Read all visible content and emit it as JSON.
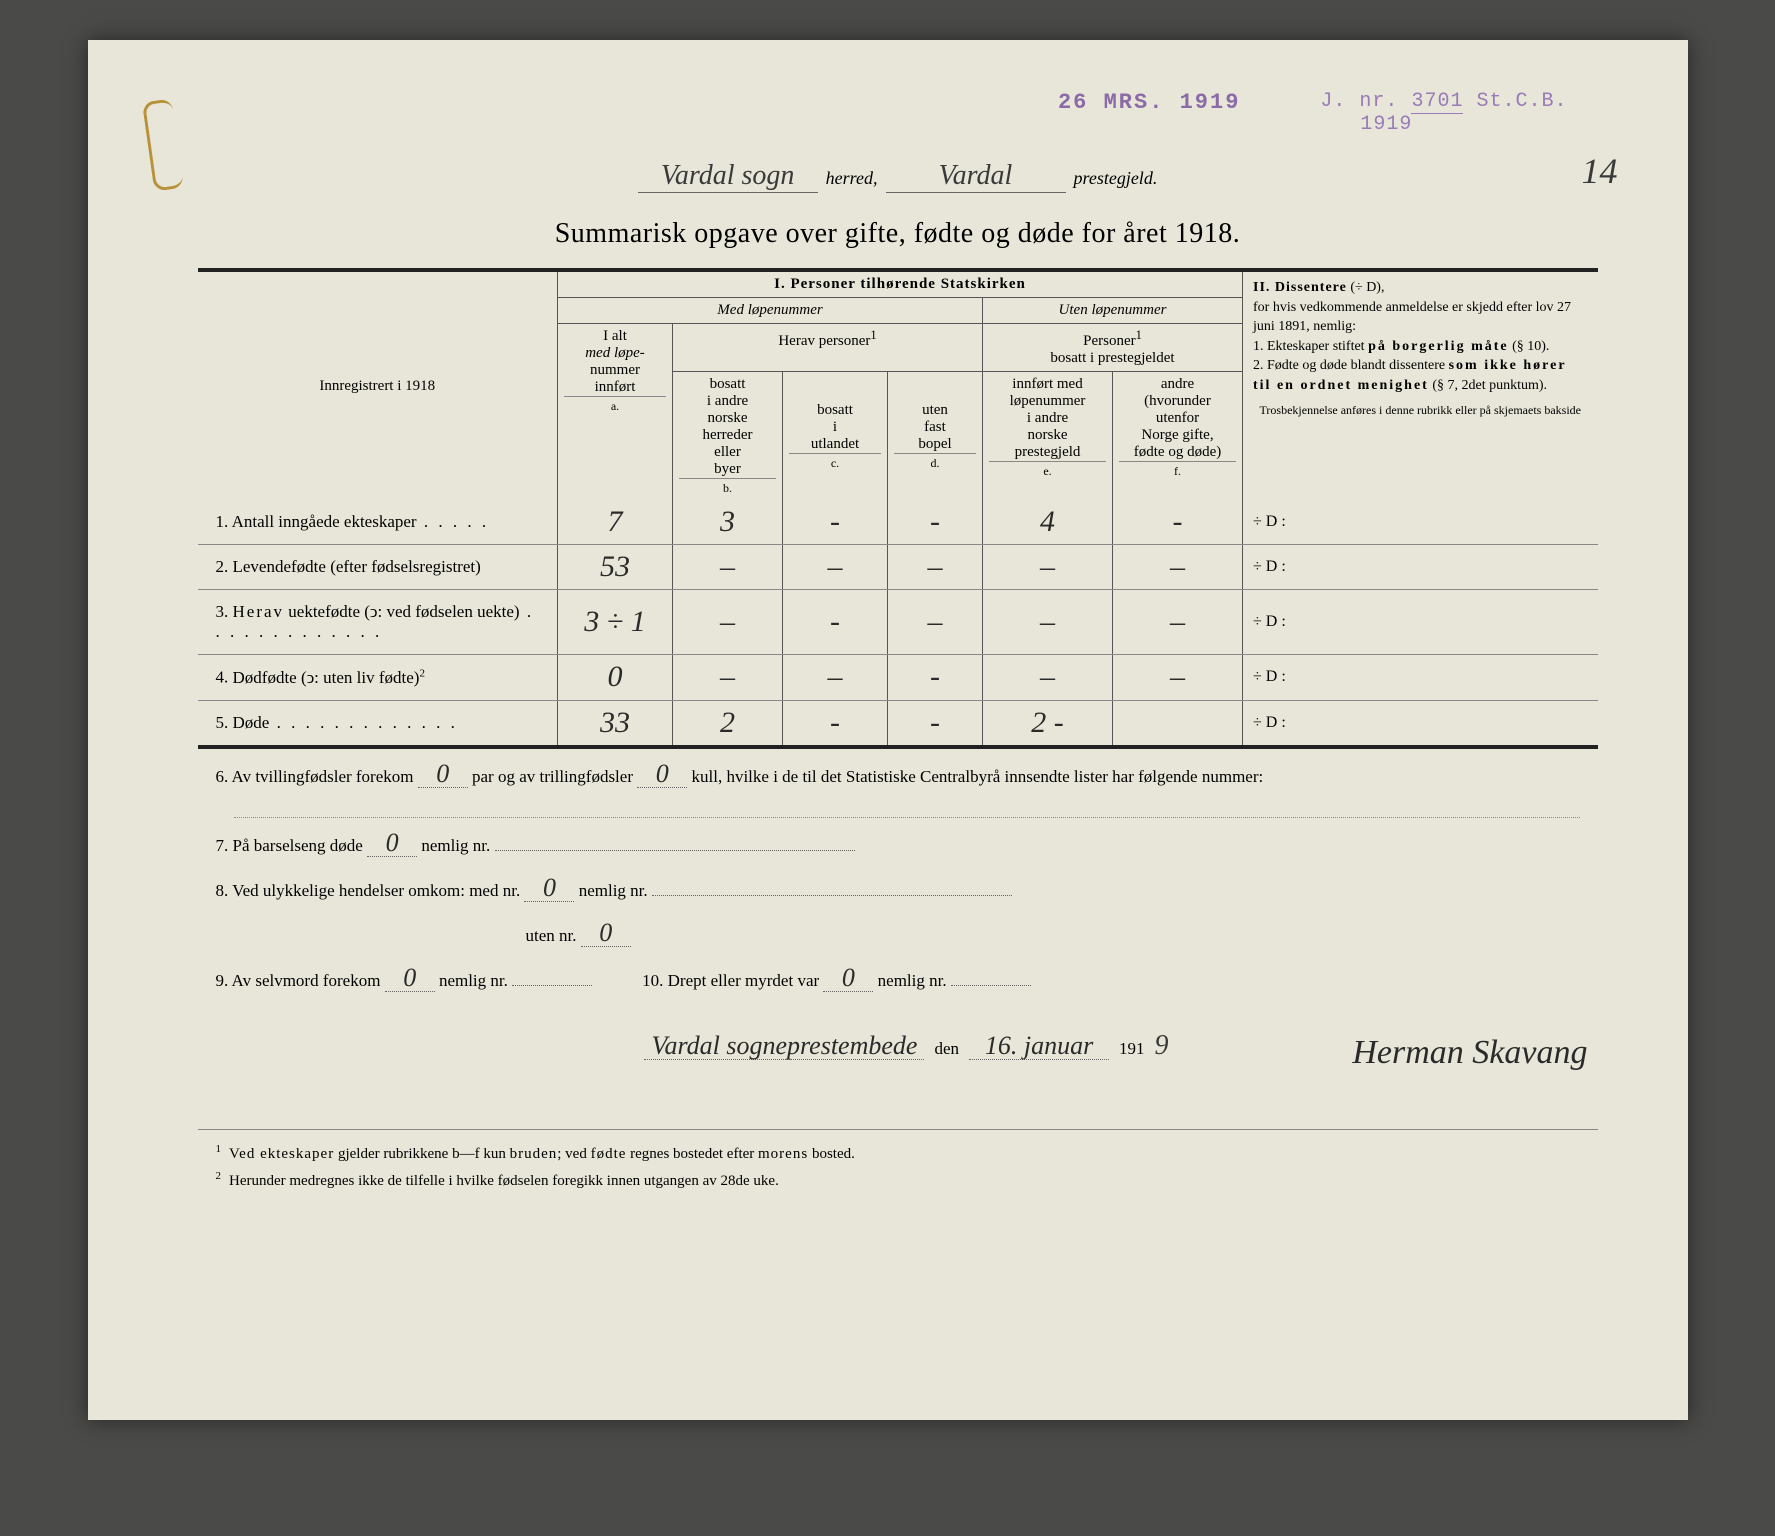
{
  "stamps": {
    "date": "26 MRS. 1919",
    "jnr_prefix": "J. nr.",
    "jnr_number": "3701",
    "jnr_suffix": "St.C.B.",
    "jnr_year": "1919"
  },
  "header": {
    "sogn_handwritten": "Vardal sogn",
    "herred_label": "herred,",
    "prestegjeld_handwritten": "Vardal",
    "prestegjeld_label": "prestegjeld.",
    "page_number": "14"
  },
  "title": "Summarisk opgave over gifte, født​e og døde for året 1918.",
  "table": {
    "left_header": "Innregistrert i 1918",
    "section_i": "I.  Personer tilhørende Statskirken",
    "med_lope": "Med løpenummer",
    "uten_lope": "Uten løpenummer",
    "herav_personer": "Herav personer",
    "sup1": "1",
    "personer_bosatt": "Personer",
    "personer_bosatt2": "bosatt i prestegjeldet",
    "col_a": {
      "l1": "I alt",
      "l2": "med løpe-",
      "l3": "nummer",
      "l4": "innført",
      "letter": "a."
    },
    "col_b": {
      "l1": "bosatt",
      "l2": "i andre",
      "l3": "norske",
      "l4": "herreder",
      "l5": "eller",
      "l6": "byer",
      "letter": "b."
    },
    "col_c": {
      "l1": "bosatt",
      "l2": "i",
      "l3": "utlandet",
      "letter": "c."
    },
    "col_d": {
      "l1": "uten",
      "l2": "fast",
      "l3": "bopel",
      "letter": "d."
    },
    "col_e": {
      "l1": "innført med",
      "l2": "løpenummer",
      "l3": "i andre",
      "l4": "norske",
      "l5": "prestegjeld",
      "letter": "e."
    },
    "col_f": {
      "l1": "andre",
      "l2": "(hvorunder",
      "l3": "utenfor",
      "l4": "Norge gifte,",
      "l5": "fødte og døde)",
      "letter": "f."
    },
    "section_ii_head": "II.  Dissentere",
    "section_ii_paren": "(÷ D),",
    "diss_text1": "for hvis vedkommende anmeldelse er skjedd efter lov 27 juni 1891, nemlig:",
    "diss_item1a": "1. Ekteskaper stiftet ",
    "diss_item1b": "på borgerlig måte",
    "diss_item1c": " (§ 10).",
    "diss_item2a": "2. Fødte og døde blandt dissentere ",
    "diss_item2b": "som ikke hører til en ordnet menighet",
    "diss_item2c": " (§ 7, 2det punktum).",
    "diss_note": "Trosbekjennelse anføres i denne rubrikk eller på skjemaets bakside",
    "rows": [
      {
        "num": "1.",
        "label": "Antall inngåede ekteskaper",
        "dots": "dots",
        "a": "7",
        "b": "3",
        "c": "-",
        "d": "-",
        "e": "4",
        "f": "-",
        "diss": "÷ D :"
      },
      {
        "num": "2.",
        "label": "Levendefødte (efter fødselsregistret)",
        "dots": "",
        "a": "53",
        "b": "–",
        "c": "–",
        "d": "–",
        "e": "–",
        "f": "–",
        "diss": "÷ D :"
      },
      {
        "num": "3.",
        "label": "Herav uektefødte (ↄ: ved fødse­len uekte)",
        "dots": "dots-long",
        "a": "3 ÷ 1",
        "b": "–",
        "c": "-",
        "d": "–",
        "e": "–",
        "f": "–",
        "diss": "÷ D :"
      },
      {
        "num": "4.",
        "label": "Dødfødte (ↄ: uten liv fødte)",
        "sup": "2",
        "dots": "",
        "a": "0",
        "b": "–",
        "c": "–",
        "d": "-",
        "e": "–",
        "f": "–",
        "diss": "÷ D :"
      },
      {
        "num": "5.",
        "label": "Døde",
        "dots": "dots-long",
        "a": "33",
        "b": "2",
        "c": "-",
        "d": "-",
        "e": "2 -",
        "f": "",
        "diss": "÷ D :"
      }
    ]
  },
  "bottom": {
    "l6a": "6.  Av tvillingfødsler forekom ",
    "l6_val1": "0",
    "l6b": " par og av trillingfødsler ",
    "l6_val2": "0",
    "l6c": " kull, hvilke i de til det Statistiske Centralbyrå innsendte lister har følgende nummer:",
    "l7a": "7.  På barselseng døde ",
    "l7_val": "0",
    "l7b": " nemlig nr. ",
    "l8a": "8.  Ved ulykkelige hendelser omkom:  med nr. ",
    "l8_val1": "0",
    "l8b": " nemlig nr. ",
    "l8c": "uten nr. ",
    "l8_val2": "0",
    "l9a": "9.  Av selvmord forekom ",
    "l9_val": "0",
    "l9b": " nemlig nr. ",
    "l10a": "10.  Drept eller myrdet var ",
    "l10_val": "0",
    "l10b": " nemlig nr. ",
    "sig_place": "Vardal sogneprestembede",
    "sig_den": " den ",
    "sig_date": "16. januar",
    "sig_year_pre": " 191",
    "sig_year": "9",
    "signature": "Herman Skavang"
  },
  "footnotes": {
    "f1": "Ved ekteskaper gjelder rubrikkene b—f kun bruden; ved fødte regnes bostedet efter morens bosted.",
    "f2": "Herunder medregnes ikke de tilfelle i hvilke fødselen foregikk innen utgangen av 28de uke."
  }
}
